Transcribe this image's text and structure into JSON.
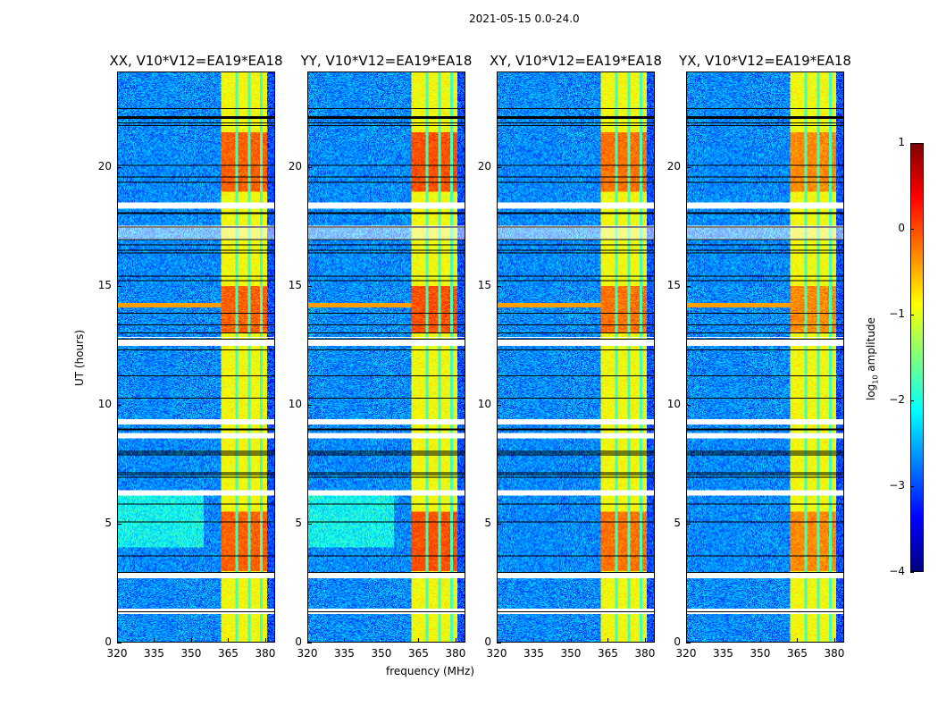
{
  "chart_data": {
    "type": "heatmap",
    "suptitle": "2021-05-15 0.0-24.0",
    "xlabel": "frequency (MHz)",
    "ylabel": "UT (hours)",
    "xlim": [
      320,
      384
    ],
    "ylim": [
      0,
      24
    ],
    "xticks": [
      "320",
      "335",
      "350",
      "365",
      "380"
    ],
    "yticks": [
      "0",
      "5",
      "10",
      "15",
      "20"
    ],
    "panels": [
      {
        "title": "XX, V10*V12=EA19*EA18",
        "strength": 1.0
      },
      {
        "title": "YY, V10*V12=EA19*EA18",
        "strength": 1.1
      },
      {
        "title": "XY, V10*V12=EA19*EA18",
        "strength": 0.9
      },
      {
        "title": "YX, V10*V12=EA19*EA18",
        "strength": 0.75
      }
    ],
    "features": {
      "rfi_band_mhz": [
        362,
        381
      ],
      "strong_rfi_hours": [
        [
          3,
          5.5
        ],
        [
          13,
          15
        ],
        [
          19,
          21.5
        ]
      ],
      "flagged_hours": [
        1.3,
        2.8,
        6.3,
        8.7,
        9.3,
        12.6,
        18.4
      ]
    },
    "colorbar": {
      "label": "log10 amplitude",
      "label_base": "log",
      "label_sub": "10",
      "label_rest": " amplitude",
      "ticks": [
        "1",
        "0",
        "−1",
        "−2",
        "−3",
        "−4"
      ],
      "range": [
        -4,
        1
      ],
      "colormap": "jet"
    }
  }
}
